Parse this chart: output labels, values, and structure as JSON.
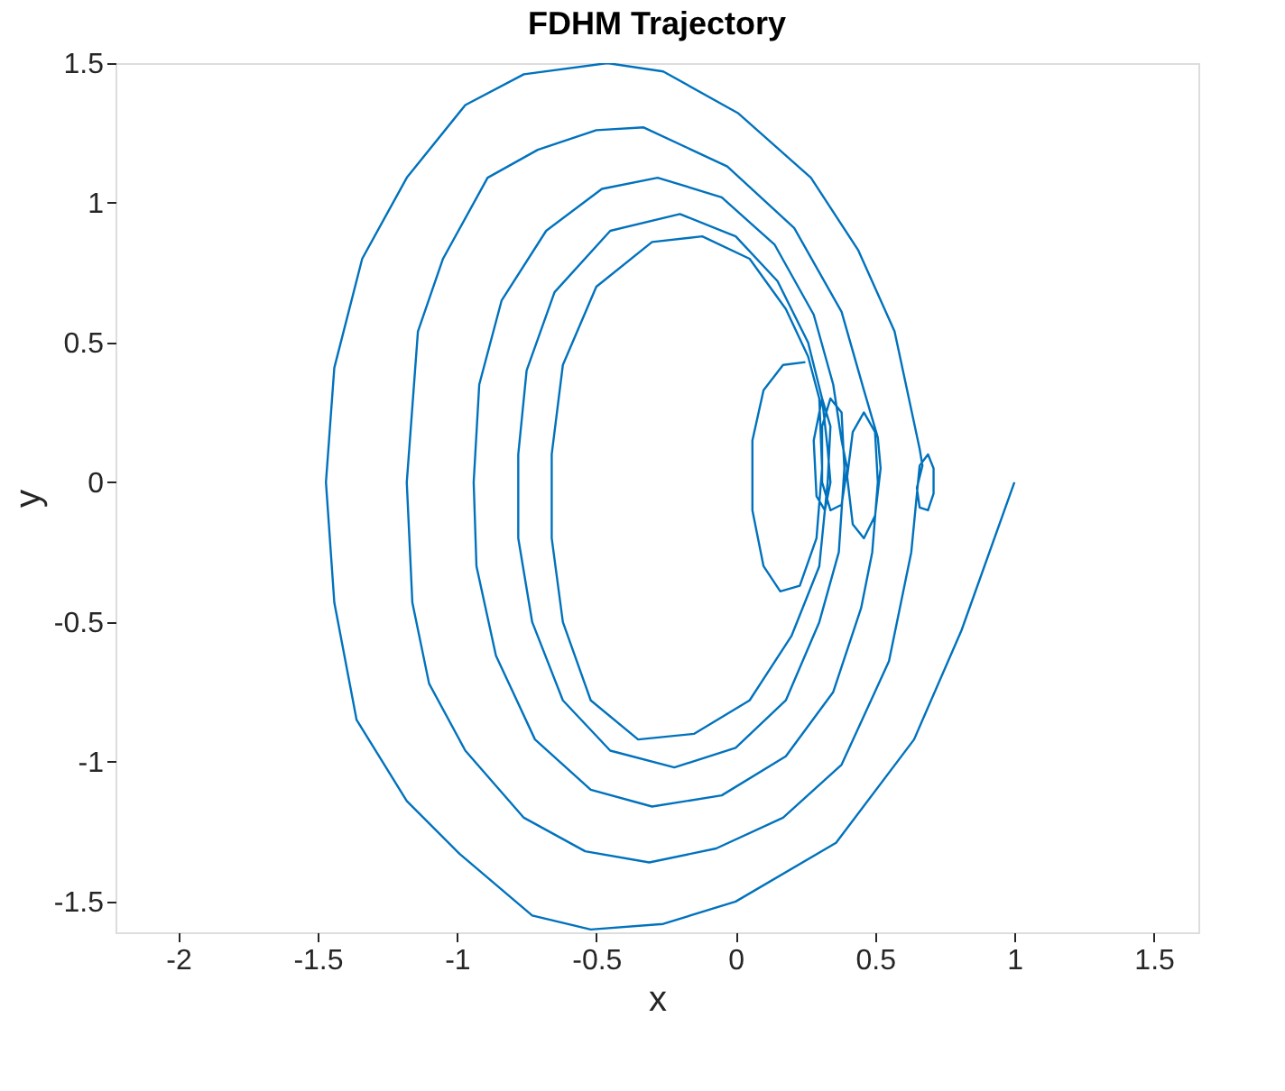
{
  "chart_data": {
    "type": "line",
    "title": "FDHM Trajectory",
    "xlabel": "x",
    "ylabel": "y",
    "xlim": [
      -2.225,
      1.66
    ],
    "ylim": [
      -1.61,
      1.5
    ],
    "xticks": [
      -2,
      -1.5,
      -1,
      -0.5,
      0,
      0.5,
      1,
      1.5
    ],
    "yticks": [
      -1.5,
      -1,
      -0.5,
      0,
      0.5,
      1,
      1.5
    ],
    "grid": false,
    "legend": false,
    "marker": "none",
    "line_style": "solid",
    "series": [
      {
        "color": "#0072bd",
        "x": [
          1,
          0.81,
          0.64,
          0.36,
          0,
          -0.26,
          -0.52,
          -0.73,
          -0.99,
          -1.18,
          -1.36,
          -1.44,
          -1.47,
          -1.44,
          -1.34,
          -1.18,
          -0.97,
          -0.76,
          -0.46,
          -0.26,
          0.01,
          0.27,
          0.44,
          0.57,
          0.66,
          0.67,
          0.65,
          0.66,
          0.69,
          0.71,
          0.71,
          0.69,
          0.66,
          0.63,
          0.55,
          0.38,
          0.17,
          -0.07,
          -0.31,
          -0.54,
          -0.76,
          -0.97,
          -1.1,
          -1.16,
          -1.18,
          -1.14,
          -1.05,
          -0.89,
          -0.71,
          -0.5,
          -0.33,
          -0.03,
          0.21,
          0.38,
          0.46,
          0.51,
          0.52,
          0.5,
          0.46,
          0.42,
          0.4,
          0.42,
          0.46,
          0.5,
          0.51,
          0.49,
          0.45,
          0.35,
          0.18,
          -0.05,
          -0.3,
          -0.52,
          -0.72,
          -0.86,
          -0.93,
          -0.94,
          -0.92,
          -0.84,
          -0.68,
          -0.48,
          -0.28,
          -0.05,
          0.14,
          0.28,
          0.35,
          0.38,
          0.4,
          0.38,
          0.34,
          0.31,
          0.31,
          0.34,
          0.38,
          0.39,
          0.37,
          0.3,
          0.18,
          0,
          -0.22,
          -0.45,
          -0.62,
          -0.73,
          -0.78,
          -0.78,
          -0.75,
          -0.65,
          -0.45,
          -0.2,
          0,
          0.15,
          0.26,
          0.31,
          0.33,
          0.34,
          0.32,
          0.29,
          0.28,
          0.31,
          0.34,
          0.33,
          0.3,
          0.2,
          0.05,
          -0.15,
          -0.35,
          -0.52,
          -0.62,
          -0.66,
          -0.66,
          -0.62,
          -0.5,
          -0.3,
          -0.12,
          0.05,
          0.18,
          0.26,
          0.3,
          0.31,
          0.29,
          0.23,
          0.16,
          0.1,
          0.06,
          0.06,
          0.1,
          0.17,
          0.25
        ],
        "values": [
          0,
          -0.53,
          -0.92,
          -1.29,
          -1.5,
          -1.58,
          -1.6,
          -1.55,
          -1.33,
          -1.14,
          -0.85,
          -0.43,
          0,
          0.41,
          0.8,
          1.09,
          1.35,
          1.46,
          1.5,
          1.47,
          1.32,
          1.09,
          0.83,
          0.54,
          0.12,
          0.06,
          -0.02,
          -0.09,
          -0.1,
          -0.04,
          0.05,
          0.1,
          0.06,
          -0.25,
          -0.64,
          -1.01,
          -1.2,
          -1.31,
          -1.36,
          -1.32,
          -1.2,
          -0.96,
          -0.72,
          -0.43,
          0,
          0.54,
          0.8,
          1.09,
          1.19,
          1.26,
          1.27,
          1.13,
          0.91,
          0.61,
          0.33,
          0.16,
          0.05,
          -0.12,
          -0.2,
          -0.15,
          0.02,
          0.18,
          0.25,
          0.18,
          0,
          -0.25,
          -0.45,
          -0.75,
          -0.98,
          -1.12,
          -1.16,
          -1.1,
          -0.92,
          -0.62,
          -0.3,
          0,
          0.35,
          0.65,
          0.9,
          1.05,
          1.09,
          1.02,
          0.85,
          0.6,
          0.35,
          0.15,
          0.05,
          -0.08,
          -0.1,
          0,
          0.2,
          0.3,
          0.25,
          0.05,
          -0.25,
          -0.5,
          -0.78,
          -0.95,
          -1.02,
          -0.96,
          -0.78,
          -0.5,
          -0.2,
          0.1,
          0.4,
          0.68,
          0.9,
          0.96,
          0.88,
          0.72,
          0.5,
          0.3,
          0.12,
          0,
          -0.1,
          -0.05,
          0.15,
          0.3,
          0.2,
          0,
          -0.3,
          -0.55,
          -0.78,
          -0.9,
          -0.92,
          -0.78,
          -0.5,
          -0.2,
          0.1,
          0.42,
          0.7,
          0.86,
          0.88,
          0.8,
          0.62,
          0.45,
          0.3,
          0.05,
          -0.2,
          -0.37,
          -0.39,
          -0.3,
          -0.1,
          0.15,
          0.33,
          0.42,
          0.43
        ]
      }
    ]
  }
}
